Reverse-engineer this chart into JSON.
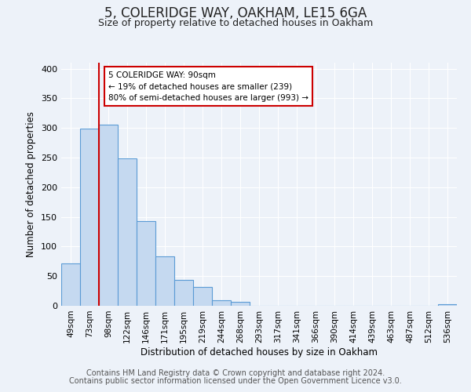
{
  "title": "5, COLERIDGE WAY, OAKHAM, LE15 6GA",
  "subtitle": "Size of property relative to detached houses in Oakham",
  "xlabel": "Distribution of detached houses by size in Oakham",
  "ylabel": "Number of detached properties",
  "bar_labels": [
    "49sqm",
    "73sqm",
    "98sqm",
    "122sqm",
    "146sqm",
    "171sqm",
    "195sqm",
    "219sqm",
    "244sqm",
    "268sqm",
    "293sqm",
    "317sqm",
    "341sqm",
    "366sqm",
    "390sqm",
    "414sqm",
    "439sqm",
    "463sqm",
    "487sqm",
    "512sqm",
    "536sqm"
  ],
  "bar_values": [
    72,
    299,
    305,
    248,
    143,
    83,
    44,
    32,
    9,
    6,
    0,
    0,
    0,
    0,
    0,
    0,
    0,
    0,
    0,
    0,
    2
  ],
  "bar_color": "#c5d9f0",
  "bar_edge_color": "#5b9bd5",
  "ylim": [
    0,
    410
  ],
  "yticks": [
    0,
    50,
    100,
    150,
    200,
    250,
    300,
    350,
    400
  ],
  "vline_color": "#cc0000",
  "annotation_text": "5 COLERIDGE WAY: 90sqm\n← 19% of detached houses are smaller (239)\n80% of semi-detached houses are larger (993) →",
  "annotation_box_color": "#ffffff",
  "annotation_box_edge": "#cc0000",
  "footer1": "Contains HM Land Registry data © Crown copyright and database right 2024.",
  "footer2": "Contains public sector information licensed under the Open Government Licence v3.0.",
  "bg_color": "#edf2f9",
  "plot_bg_color": "#edf2f9",
  "grid_color": "#ffffff",
  "title_fontsize": 12,
  "subtitle_fontsize": 9,
  "footer_fontsize": 7
}
